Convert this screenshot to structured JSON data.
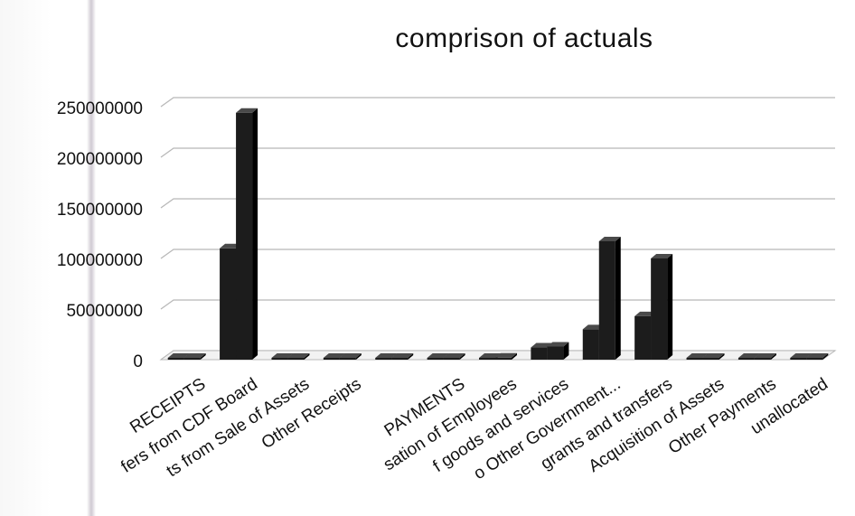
{
  "chart_data": {
    "type": "bar",
    "title": "comprison of actuals",
    "categories": [
      "RECEIPTS",
      "fers from CDF Board",
      "ts from Sale of Assets",
      "Other Receipts",
      "",
      "PAYMENTS",
      "sation of Employees",
      "f goods and services",
      "o Other Government...",
      "grants and transfers",
      "Acquisition of Assets",
      "Other Payments",
      "unallocated"
    ],
    "series": [
      {
        "values": [
          0,
          110000000,
          0,
          0,
          0,
          0,
          0,
          12000000,
          30000000,
          43000000,
          0,
          0,
          0
        ]
      },
      {
        "values": [
          0,
          244000000,
          0,
          0,
          0,
          0,
          2000000,
          13000000,
          117000000,
          100000000,
          0,
          0,
          0
        ]
      }
    ],
    "yticks": [
      "0",
      "50000000",
      "100000000",
      "150000000",
      "200000000",
      "250000000"
    ],
    "ylim": [
      0,
      250000000
    ],
    "grid": true,
    "legend": "none",
    "colors": {
      "bar": "#1c1c1c",
      "bar_side": "#000000",
      "bar_top": "#4a4a4a",
      "grid": "#b8b8b8"
    }
  }
}
